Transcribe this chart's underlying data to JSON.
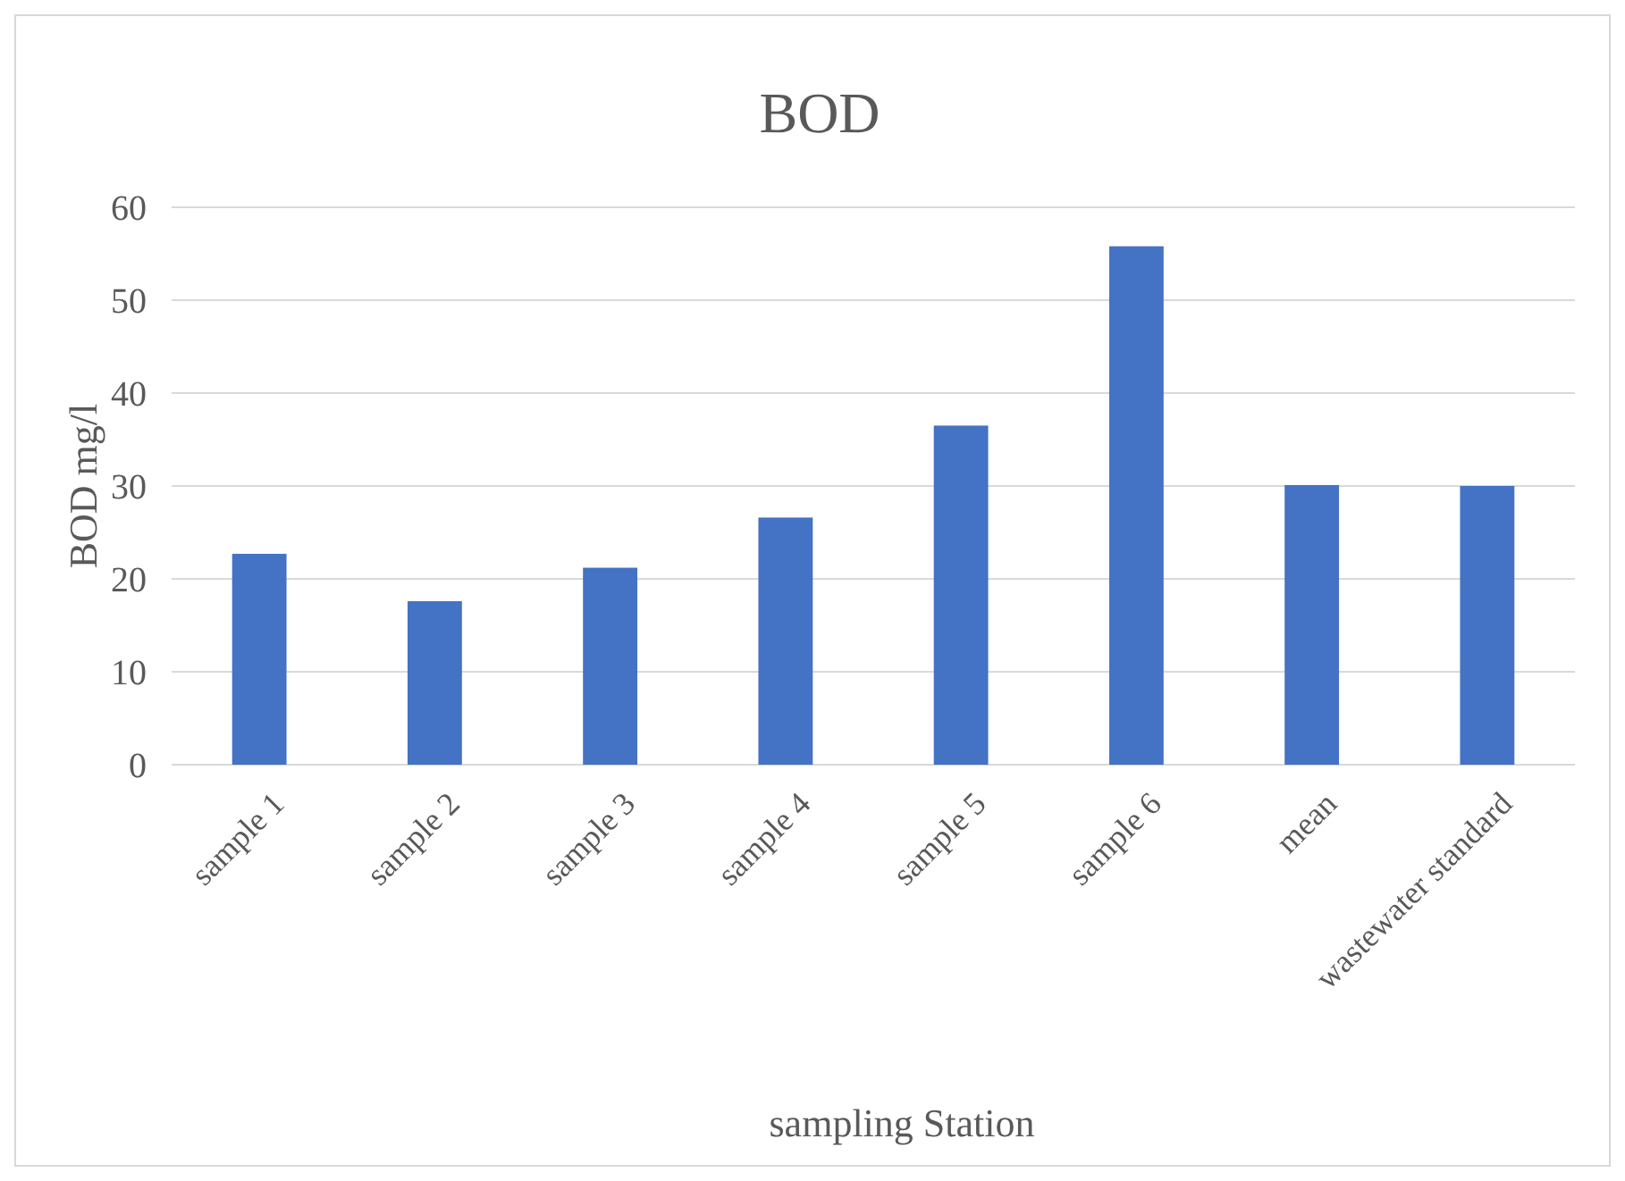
{
  "chart_data": {
    "type": "bar",
    "title": "BOD",
    "xlabel": "sampling Station",
    "ylabel": "BOD mg/l",
    "categories": [
      "sample 1",
      "sample 2",
      "sample 3",
      "sample 4",
      "sample 5",
      "sample 6",
      "mean",
      "wastewater standard"
    ],
    "values": [
      22.7,
      17.6,
      21.2,
      26.6,
      36.5,
      55.8,
      30.1,
      30
    ],
    "color": "#4472c4",
    "ylim": [
      0,
      60
    ],
    "yticks": [
      0,
      10,
      20,
      30,
      40,
      50,
      60
    ],
    "grid": "y"
  }
}
